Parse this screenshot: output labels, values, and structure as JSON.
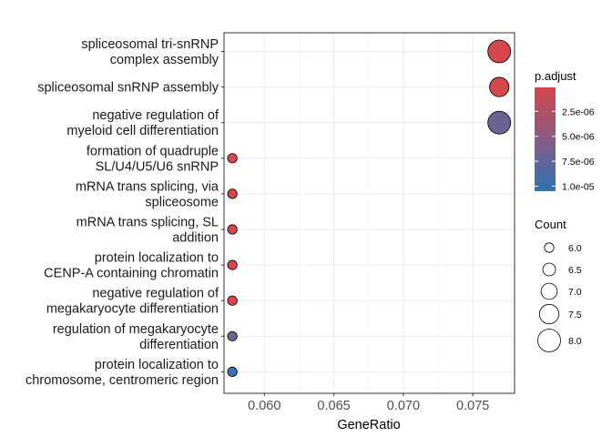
{
  "chart_data": {
    "type": "scatter",
    "xlabel": "GeneRatio",
    "xlim": [
      0.0571,
      0.078
    ],
    "x_ticks": [
      "0.060",
      "0.065",
      "0.070",
      "0.075"
    ],
    "x_tick_values": [
      0.06,
      0.065,
      0.07,
      0.075
    ],
    "grid": true,
    "categories": [
      [
        "spliceosomal tri-snRNP",
        "complex assembly"
      ],
      [
        "spliceosomal snRNP assembly"
      ],
      [
        "negative regulation of",
        "myeloid cell differentiation"
      ],
      [
        "formation of quadruple",
        "SL/U4/U5/U6 snRNP"
      ],
      [
        "mRNA trans splicing, via",
        "spliceosome"
      ],
      [
        "mRNA trans splicing, SL",
        "addition"
      ],
      [
        "protein localization to",
        "CENP-A containing chromatin"
      ],
      [
        "negative regulation of",
        "megakaryocyte differentiation"
      ],
      [
        "regulation of megakaryocyte",
        "differentiation"
      ],
      [
        "protein localization to",
        "chromosome, centromeric region"
      ]
    ],
    "points": [
      {
        "x": 0.0769,
        "count": 8,
        "p_adjust": 1e-07
      },
      {
        "x": 0.0769,
        "count": 7.5,
        "p_adjust": 1e-07
      },
      {
        "x": 0.0769,
        "count": 8,
        "p_adjust": 7e-06
      },
      {
        "x": 0.0577,
        "count": 6,
        "p_adjust": 1e-07
      },
      {
        "x": 0.0577,
        "count": 6,
        "p_adjust": 1e-07
      },
      {
        "x": 0.0577,
        "count": 6,
        "p_adjust": 1e-07
      },
      {
        "x": 0.0577,
        "count": 6,
        "p_adjust": 1e-07
      },
      {
        "x": 0.0577,
        "count": 6,
        "p_adjust": 1e-07
      },
      {
        "x": 0.0577,
        "count": 6,
        "p_adjust": 7.3e-06
      },
      {
        "x": 0.0577,
        "count": 6,
        "p_adjust": 1e-05
      }
    ],
    "color_legend": {
      "title": "p.adjust",
      "tick_labels": [
        "2.5e-06",
        "5.0e-06",
        "7.5e-06",
        "1.0e-05"
      ],
      "tick_values": [
        2.5e-06,
        5e-06,
        7.5e-06,
        1e-05
      ],
      "range": [
        1e-07,
        1.05e-05
      ],
      "low_color": "#d6474d",
      "high_color": "#2c74b4"
    },
    "size_legend": {
      "title": "Count",
      "labels": [
        "6.0",
        "6.5",
        "7.0",
        "7.5",
        "8.0"
      ],
      "values": [
        6.0,
        6.5,
        7.0,
        7.5,
        8.0
      ],
      "range": [
        6,
        8
      ]
    }
  }
}
